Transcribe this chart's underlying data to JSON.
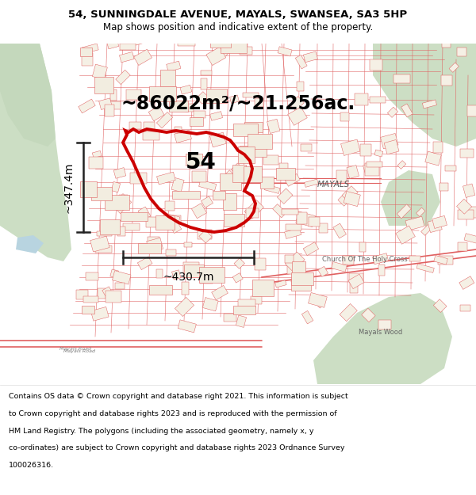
{
  "title_line1": "54, SUNNINGDALE AVENUE, MAYALS, SWANSEA, SA3 5HP",
  "title_line2": "Map shows position and indicative extent of the property.",
  "area_label": "~86022m²/~21.256ac.",
  "property_number": "54",
  "width_label": "~430.7m",
  "height_label": "~347.4m",
  "mayals_label": "MAYALS",
  "church_label": "Church Of The Holy Cross",
  "mayals_wood_label": "Mayals Wood",
  "footer_lines": [
    "Contains OS data © Crown copyright and database right 2021. This information is subject",
    "to Crown copyright and database rights 2023 and is reproduced with the permission of",
    "HM Land Registry. The polygons (including the associated geometry, namely x, y",
    "co-ordinates) are subject to Crown copyright and database rights 2023 Ordnance Survey",
    "100026316."
  ],
  "map_bg": "#f5f0e8",
  "map_bg_dense": "#ede8dc",
  "green1": "#ccdec4",
  "green2": "#c4d8bc",
  "water": "#b8d4e0",
  "road_color": "#d44444",
  "road_thin": "#e06060",
  "boundary_color": "#cc0000",
  "boundary_lw": 2.8,
  "dim_color": "#222222",
  "white": "#ffffff",
  "title_fs": 9.5,
  "sub_fs": 8.5,
  "area_fs": 17,
  "num_fs": 20,
  "dim_fs": 10,
  "footer_fs": 6.8,
  "label_fs": 7.5,
  "small_label_fs": 6.0
}
